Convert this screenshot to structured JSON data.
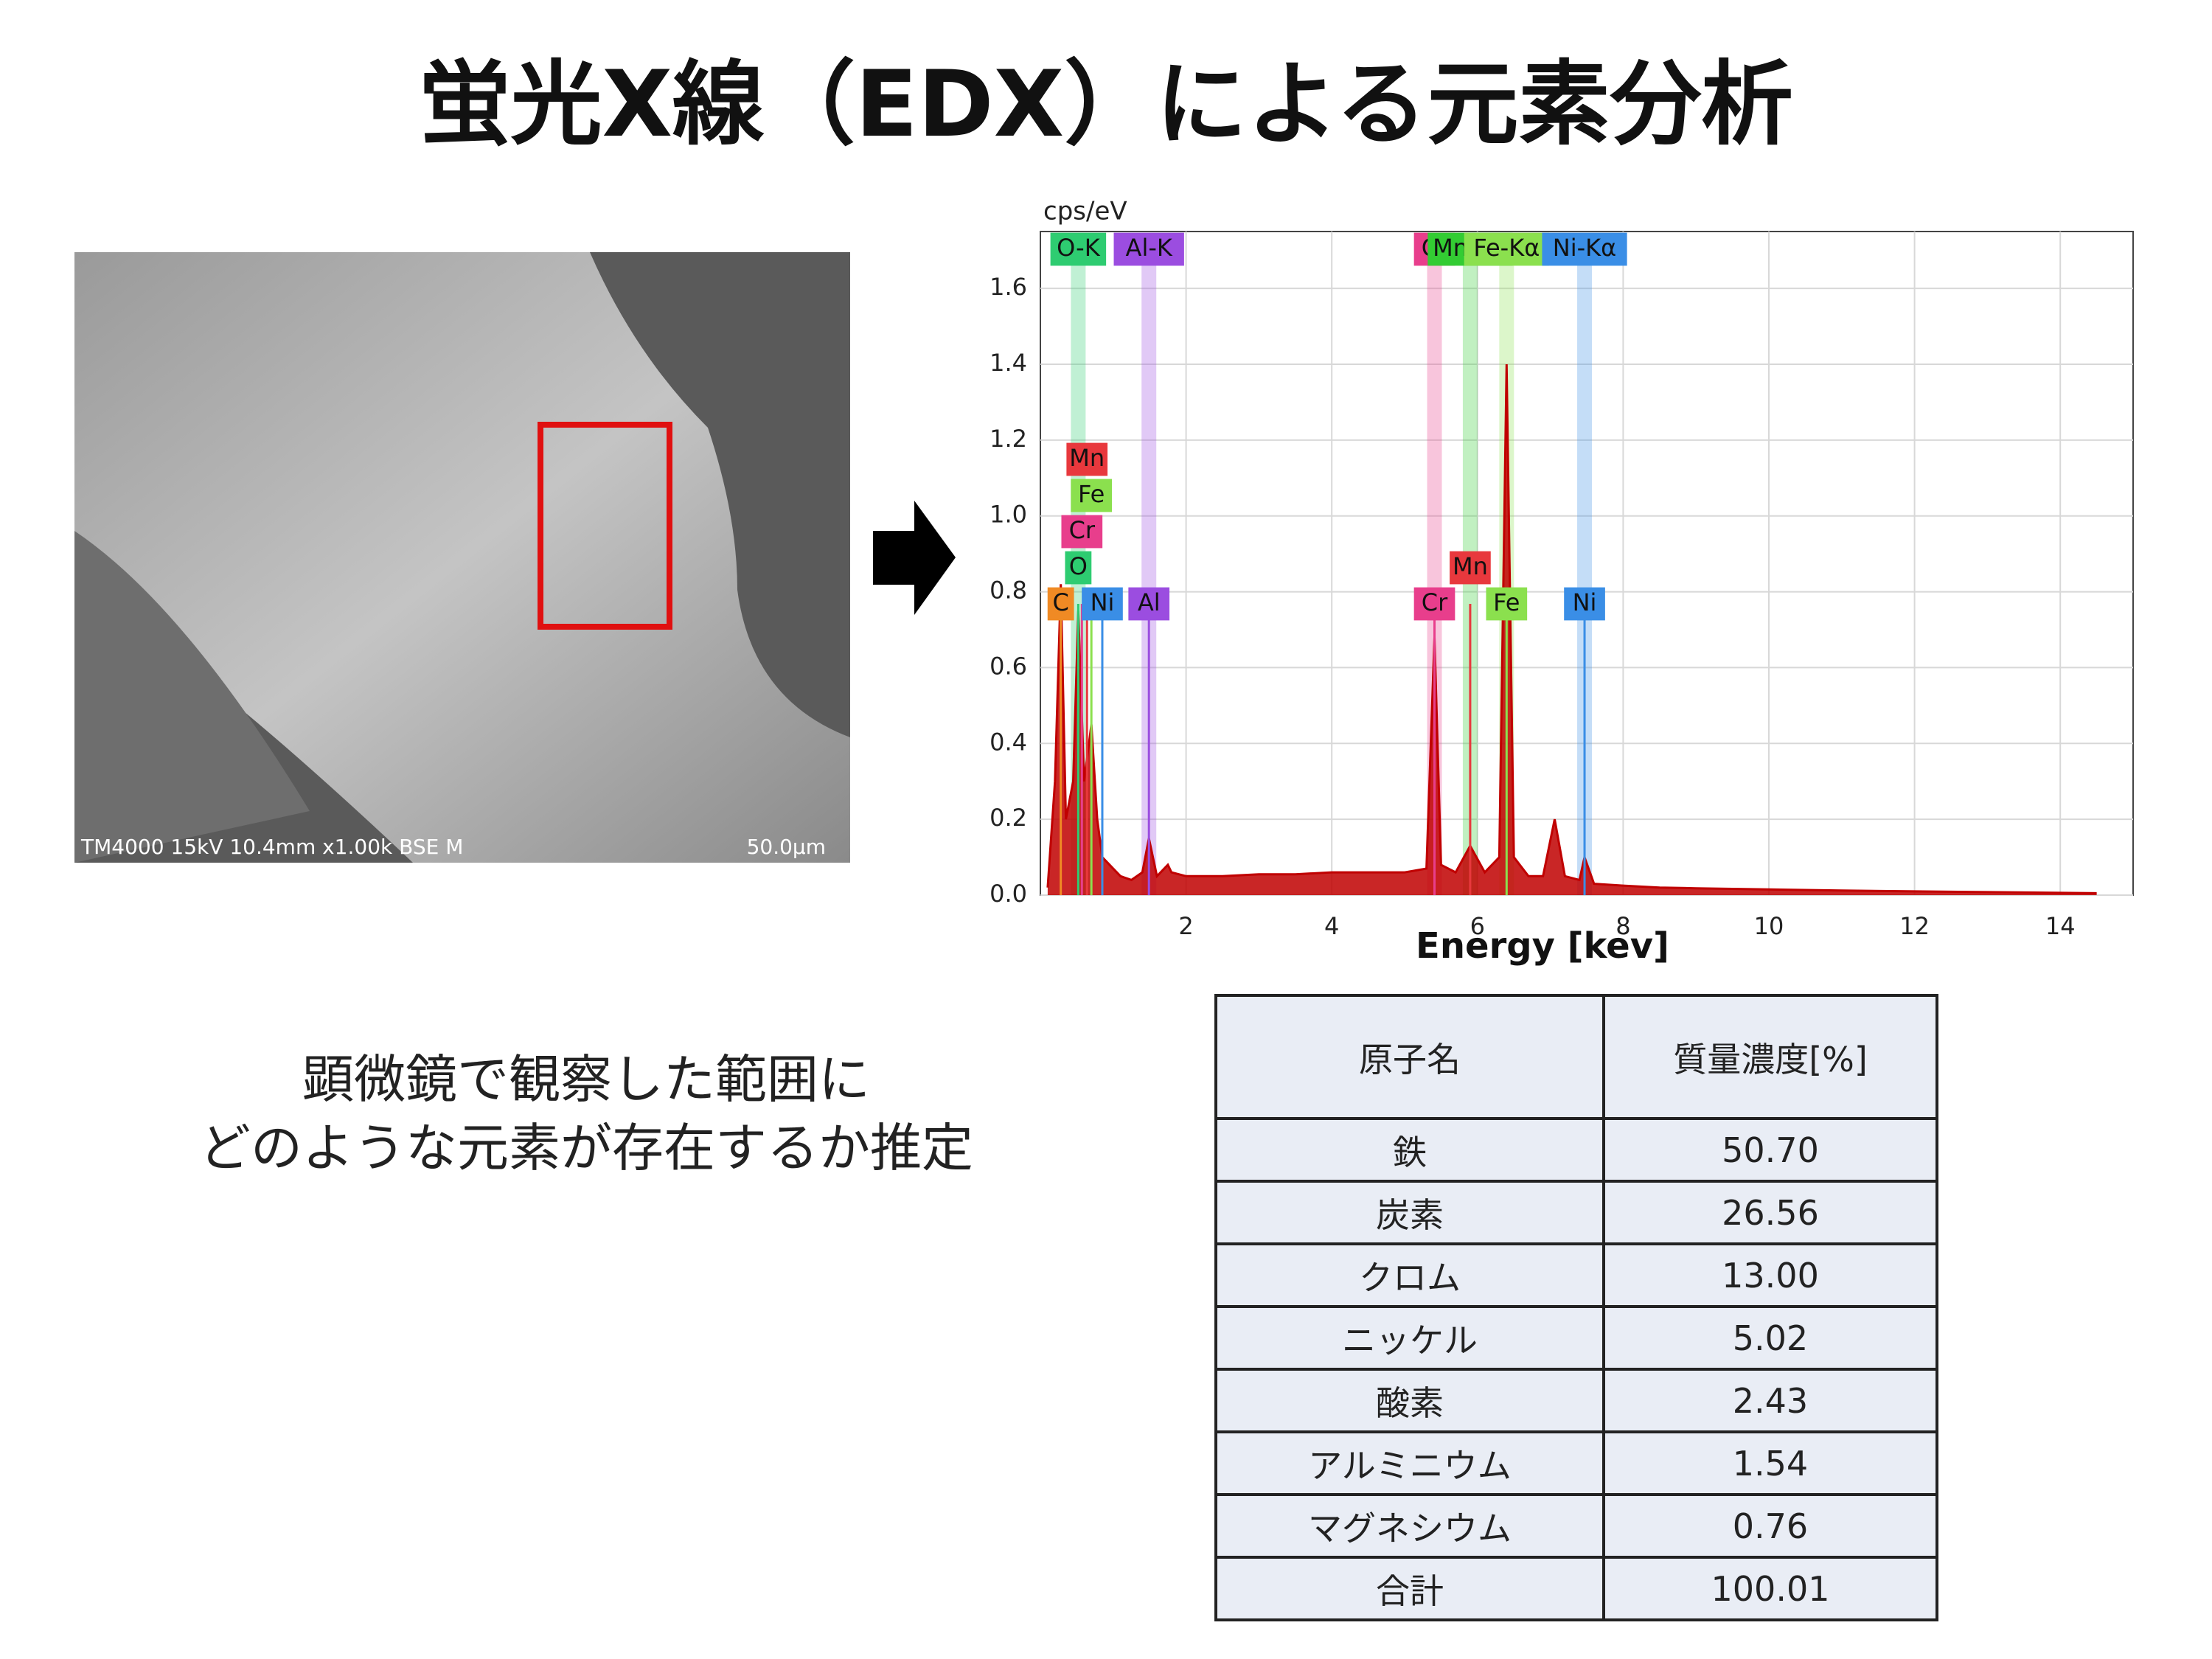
{
  "title": "蛍光X線（EDX）による元素分析",
  "sem_image": {
    "caption": "TM4000 15kV 10.4mm x1.00k BSE M",
    "scale": "50.0μm"
  },
  "description": [
    "顕微鏡で観察した範囲に",
    "どのような元素が存在するか推定"
  ],
  "chart_data": {
    "type": "area",
    "y_label": "cps/eV",
    "x_label": "Energy [kev]",
    "xlim": [
      0,
      15
    ],
    "ylim": [
      0,
      1.75
    ],
    "xticks": [
      2,
      4,
      6,
      8,
      10,
      12,
      14
    ],
    "yticks": [
      {
        "value": 0,
        "label": "0.0"
      },
      0.2,
      0.4,
      0.6,
      0.8,
      {
        "value": 1,
        "label": "1.0"
      },
      1.2,
      1.4,
      1.6
    ],
    "grid": true,
    "series": [
      {
        "name": "spectrum",
        "color": "#c00000",
        "x": [
          0.1,
          0.2,
          0.28,
          0.35,
          0.45,
          0.52,
          0.6,
          0.7,
          0.78,
          0.85,
          0.95,
          1.1,
          1.25,
          1.4,
          1.49,
          1.6,
          1.75,
          1.8,
          2,
          2.5,
          3,
          3.5,
          4,
          4.5,
          5,
          5.3,
          5.41,
          5.5,
          5.7,
          5.9,
          6.1,
          6.3,
          6.4,
          6.5,
          6.7,
          6.9,
          7.06,
          7.2,
          7.4,
          7.47,
          7.6,
          8,
          8.5,
          9,
          10,
          11,
          12,
          13,
          14,
          14.5
        ],
        "values": [
          0.02,
          0.3,
          0.82,
          0.2,
          0.3,
          0.75,
          0.3,
          0.45,
          0.2,
          0.1,
          0.08,
          0.05,
          0.04,
          0.06,
          0.15,
          0.05,
          0.08,
          0.06,
          0.05,
          0.05,
          0.055,
          0.055,
          0.06,
          0.06,
          0.06,
          0.07,
          0.68,
          0.08,
          0.06,
          0.13,
          0.06,
          0.1,
          1.4,
          0.1,
          0.05,
          0.05,
          0.2,
          0.05,
          0.04,
          0.1,
          0.03,
          0.025,
          0.02,
          0.018,
          0.015,
          0.012,
          0.01,
          0.008,
          0.006,
          0.005
        ]
      }
    ],
    "line_markers": [
      {
        "label": "O-K",
        "energy": 0.52,
        "color": "#2ecc71"
      },
      {
        "label": "Al-K",
        "energy": 1.49,
        "color": "#9b4de0"
      },
      {
        "label": "Cr",
        "energy": 5.41,
        "color": "#e83e8c"
      },
      {
        "label": "Mn-Kα",
        "energy": 5.9,
        "color": "#33cc33"
      },
      {
        "label": "Fe-Kα",
        "energy": 6.4,
        "color": "#8be04e"
      },
      {
        "label": "Ni-Kα",
        "energy": 7.47,
        "color": "#3a8ee6"
      }
    ],
    "peak_markers": [
      {
        "label": "Mn",
        "energy": 0.64,
        "color": "#e8383d"
      },
      {
        "label": "Fe",
        "energy": 0.7,
        "color": "#8be04e"
      },
      {
        "label": "Cr",
        "energy": 0.57,
        "color": "#e83e8c"
      },
      {
        "label": "O",
        "energy": 0.52,
        "color": "#2ecc71"
      },
      {
        "label": "C",
        "energy": 0.28,
        "color": "#f08a24"
      },
      {
        "label": "Ni",
        "energy": 0.85,
        "color": "#3a8ee6"
      },
      {
        "label": "Al",
        "energy": 1.49,
        "color": "#9b4de0"
      },
      {
        "label": "Mn",
        "energy": 5.9,
        "color": "#e8383d"
      },
      {
        "label": "Cr",
        "energy": 5.41,
        "color": "#e83e8c"
      },
      {
        "label": "Fe",
        "energy": 6.4,
        "color": "#8be04e"
      },
      {
        "label": "Ni",
        "energy": 7.47,
        "color": "#3a8ee6"
      }
    ]
  },
  "table": {
    "header": [
      "原子名",
      "質量濃度[%]"
    ],
    "rows": [
      [
        "鉄",
        "50.70"
      ],
      [
        "炭素",
        "26.56"
      ],
      [
        "クロム",
        "13.00"
      ],
      [
        "ニッケル",
        "5.02"
      ],
      [
        "酸素",
        "2.43"
      ],
      [
        "アルミニウム",
        "1.54"
      ],
      [
        "マグネシウム",
        "0.76"
      ],
      [
        "合計",
        "100.01"
      ]
    ]
  }
}
